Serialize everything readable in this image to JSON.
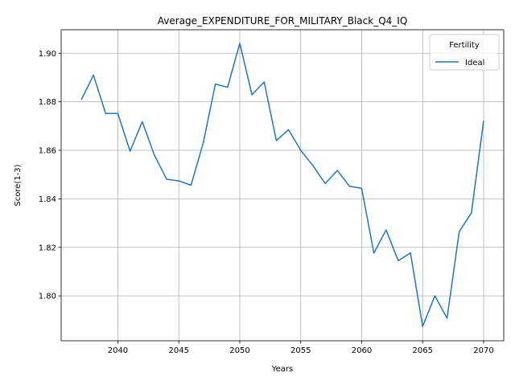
{
  "chart_data": {
    "type": "line",
    "title": "Average_EXPENDITURE_FOR_MILITARY_Black_Q4_IQ",
    "xlabel": "Years",
    "ylabel": "Score(1-3)",
    "xlim": [
      2035.35,
      2071.65
    ],
    "ylim": [
      1.7815,
      1.9097
    ],
    "x_ticks": [
      2040,
      2045,
      2050,
      2055,
      2060,
      2065,
      2070
    ],
    "y_ticks": [
      1.8,
      1.82,
      1.84,
      1.86,
      1.88,
      1.9
    ],
    "x_tick_labels": [
      "2040",
      "2045",
      "2050",
      "2055",
      "2060",
      "2065",
      "2070"
    ],
    "y_tick_labels": [
      "1.80",
      "1.82",
      "1.84",
      "1.86",
      "1.88",
      "1.90"
    ],
    "grid": true,
    "legend": {
      "title": "Fertility",
      "placement": "top-right"
    },
    "x": [
      2037,
      2038,
      2039,
      2040,
      2041,
      2042,
      2043,
      2044,
      2045,
      2046,
      2047,
      2048,
      2049,
      2050,
      2051,
      2052,
      2053,
      2054,
      2055,
      2056,
      2057,
      2058,
      2059,
      2060,
      2061,
      2062,
      2063,
      2064,
      2065,
      2066,
      2067,
      2068,
      2069,
      2070
    ],
    "series": [
      {
        "name": "Ideal",
        "color": "#1f77b4",
        "values": [
          1.8808,
          1.891,
          1.8752,
          1.8752,
          1.8596,
          1.8718,
          1.858,
          1.8481,
          1.8474,
          1.8456,
          1.863,
          1.8873,
          1.886,
          1.9041,
          1.8829,
          1.8882,
          1.864,
          1.8685,
          1.86,
          1.8537,
          1.8463,
          1.8517,
          1.8452,
          1.8443,
          1.8176,
          1.8272,
          1.8145,
          1.8177,
          1.7874,
          1.8,
          1.7908,
          1.8265,
          1.8342,
          1.8722
        ]
      }
    ]
  }
}
